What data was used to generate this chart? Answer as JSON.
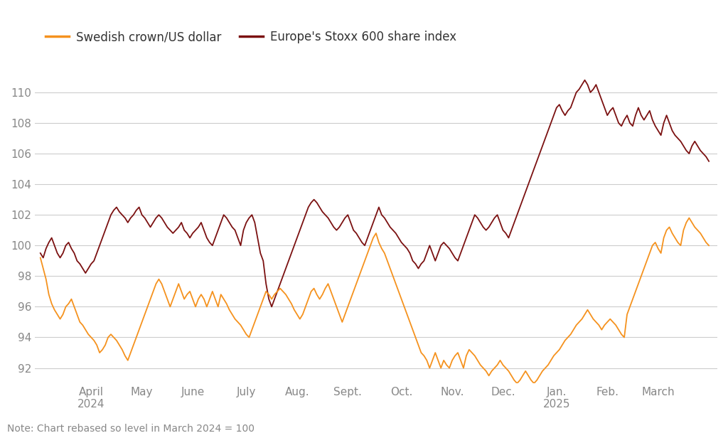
{
  "note": "Note: Chart rebased so level in March 2024 = 100",
  "legend_labels": [
    "Swedish crown/US dollar",
    "Europe's Stoxx 600 share index"
  ],
  "line_colors": [
    "#F5921E",
    "#7B1111"
  ],
  "background_color": "#FFFFFF",
  "grid_color": "#CCCCCC",
  "ylim": [
    91.0,
    112.0
  ],
  "yticks": [
    92,
    94,
    96,
    98,
    100,
    102,
    104,
    106,
    108,
    110
  ],
  "x_tick_labels": [
    "April\n2024",
    "May",
    "June",
    "July",
    "Aug.",
    "Sept.",
    "Oct.",
    "Nov.",
    "Dec.",
    "Jan.\n2025",
    "Feb.",
    "March"
  ],
  "swedish_crown": [
    99.2,
    98.5,
    97.8,
    96.8,
    96.2,
    95.8,
    95.5,
    95.2,
    95.5,
    96.0,
    96.2,
    96.5,
    96.0,
    95.5,
    95.0,
    94.8,
    94.5,
    94.2,
    94.0,
    93.8,
    93.5,
    93.0,
    93.2,
    93.5,
    94.0,
    94.2,
    94.0,
    93.8,
    93.5,
    93.2,
    92.8,
    92.5,
    93.0,
    93.5,
    94.0,
    94.5,
    95.0,
    95.5,
    96.0,
    96.5,
    97.0,
    97.5,
    97.8,
    97.5,
    97.0,
    96.5,
    96.0,
    96.5,
    97.0,
    97.5,
    97.0,
    96.5,
    96.8,
    97.0,
    96.5,
    96.0,
    96.5,
    96.8,
    96.5,
    96.0,
    96.5,
    97.0,
    96.5,
    96.0,
    96.8,
    96.5,
    96.2,
    95.8,
    95.5,
    95.2,
    95.0,
    94.8,
    94.5,
    94.2,
    94.0,
    94.5,
    95.0,
    95.5,
    96.0,
    96.5,
    97.0,
    96.8,
    96.5,
    96.8,
    97.0,
    97.2,
    97.0,
    96.8,
    96.5,
    96.2,
    95.8,
    95.5,
    95.2,
    95.5,
    96.0,
    96.5,
    97.0,
    97.2,
    96.8,
    96.5,
    96.8,
    97.2,
    97.5,
    97.0,
    96.5,
    96.0,
    95.5,
    95.0,
    95.5,
    96.0,
    96.5,
    97.0,
    97.5,
    98.0,
    98.5,
    99.0,
    99.5,
    100.0,
    100.5,
    100.8,
    100.2,
    99.8,
    99.5,
    99.0,
    98.5,
    98.0,
    97.5,
    97.0,
    96.5,
    96.0,
    95.5,
    95.0,
    94.5,
    94.0,
    93.5,
    93.0,
    92.8,
    92.5,
    92.0,
    92.5,
    93.0,
    92.5,
    92.0,
    92.5,
    92.2,
    92.0,
    92.5,
    92.8,
    93.0,
    92.5,
    92.0,
    92.8,
    93.2,
    93.0,
    92.8,
    92.5,
    92.2,
    92.0,
    91.8,
    91.5,
    91.8,
    92.0,
    92.2,
    92.5,
    92.2,
    92.0,
    91.8,
    91.5,
    91.2,
    91.0,
    91.2,
    91.5,
    91.8,
    91.5,
    91.2,
    91.0,
    91.2,
    91.5,
    91.8,
    92.0,
    92.2,
    92.5,
    92.8,
    93.0,
    93.2,
    93.5,
    93.8,
    94.0,
    94.2,
    94.5,
    94.8,
    95.0,
    95.2,
    95.5,
    95.8,
    95.5,
    95.2,
    95.0,
    94.8,
    94.5,
    94.8,
    95.0,
    95.2,
    95.0,
    94.8,
    94.5,
    94.2,
    94.0,
    95.5,
    96.0,
    96.5,
    97.0,
    97.5,
    98.0,
    98.5,
    99.0,
    99.5,
    100.0,
    100.2,
    99.8,
    99.5,
    100.5,
    101.0,
    101.2,
    100.8,
    100.5,
    100.2,
    100.0,
    101.0,
    101.5,
    101.8,
    101.5,
    101.2,
    101.0,
    100.8,
    100.5,
    100.2,
    100.0
  ],
  "stoxx600": [
    99.5,
    99.2,
    99.8,
    100.2,
    100.5,
    100.0,
    99.5,
    99.2,
    99.5,
    100.0,
    100.2,
    99.8,
    99.5,
    99.0,
    98.8,
    98.5,
    98.2,
    98.5,
    98.8,
    99.0,
    99.5,
    100.0,
    100.5,
    101.0,
    101.5,
    102.0,
    102.3,
    102.5,
    102.2,
    102.0,
    101.8,
    101.5,
    101.8,
    102.0,
    102.3,
    102.5,
    102.0,
    101.8,
    101.5,
    101.2,
    101.5,
    101.8,
    102.0,
    101.8,
    101.5,
    101.2,
    101.0,
    100.8,
    101.0,
    101.2,
    101.5,
    101.0,
    100.8,
    100.5,
    100.8,
    101.0,
    101.2,
    101.5,
    101.0,
    100.5,
    100.2,
    100.0,
    100.5,
    101.0,
    101.5,
    102.0,
    101.8,
    101.5,
    101.2,
    101.0,
    100.5,
    100.0,
    101.0,
    101.5,
    101.8,
    102.0,
    101.5,
    100.5,
    99.5,
    99.0,
    97.5,
    96.5,
    96.0,
    96.5,
    97.0,
    97.5,
    98.0,
    98.5,
    99.0,
    99.5,
    100.0,
    100.5,
    101.0,
    101.5,
    102.0,
    102.5,
    102.8,
    103.0,
    102.8,
    102.5,
    102.2,
    102.0,
    101.8,
    101.5,
    101.2,
    101.0,
    101.2,
    101.5,
    101.8,
    102.0,
    101.5,
    101.0,
    100.8,
    100.5,
    100.2,
    100.0,
    100.5,
    101.0,
    101.5,
    102.0,
    102.5,
    102.0,
    101.8,
    101.5,
    101.2,
    101.0,
    100.8,
    100.5,
    100.2,
    100.0,
    99.8,
    99.5,
    99.0,
    98.8,
    98.5,
    98.8,
    99.0,
    99.5,
    100.0,
    99.5,
    99.0,
    99.5,
    100.0,
    100.2,
    100.0,
    99.8,
    99.5,
    99.2,
    99.0,
    99.5,
    100.0,
    100.5,
    101.0,
    101.5,
    102.0,
    101.8,
    101.5,
    101.2,
    101.0,
    101.2,
    101.5,
    101.8,
    102.0,
    101.5,
    101.0,
    100.8,
    100.5,
    101.0,
    101.5,
    102.0,
    102.5,
    103.0,
    103.5,
    104.0,
    104.5,
    105.0,
    105.5,
    106.0,
    106.5,
    107.0,
    107.5,
    108.0,
    108.5,
    109.0,
    109.2,
    108.8,
    108.5,
    108.8,
    109.0,
    109.5,
    110.0,
    110.2,
    110.5,
    110.8,
    110.5,
    110.0,
    110.2,
    110.5,
    110.0,
    109.5,
    109.0,
    108.5,
    108.8,
    109.0,
    108.5,
    108.0,
    107.8,
    108.2,
    108.5,
    108.0,
    107.8,
    108.5,
    109.0,
    108.5,
    108.2,
    108.5,
    108.8,
    108.2,
    107.8,
    107.5,
    107.2,
    108.0,
    108.5,
    108.0,
    107.5,
    107.2,
    107.0,
    106.8,
    106.5,
    106.2,
    106.0,
    106.5,
    106.8,
    106.5,
    106.2,
    106.0,
    105.8,
    105.5
  ]
}
